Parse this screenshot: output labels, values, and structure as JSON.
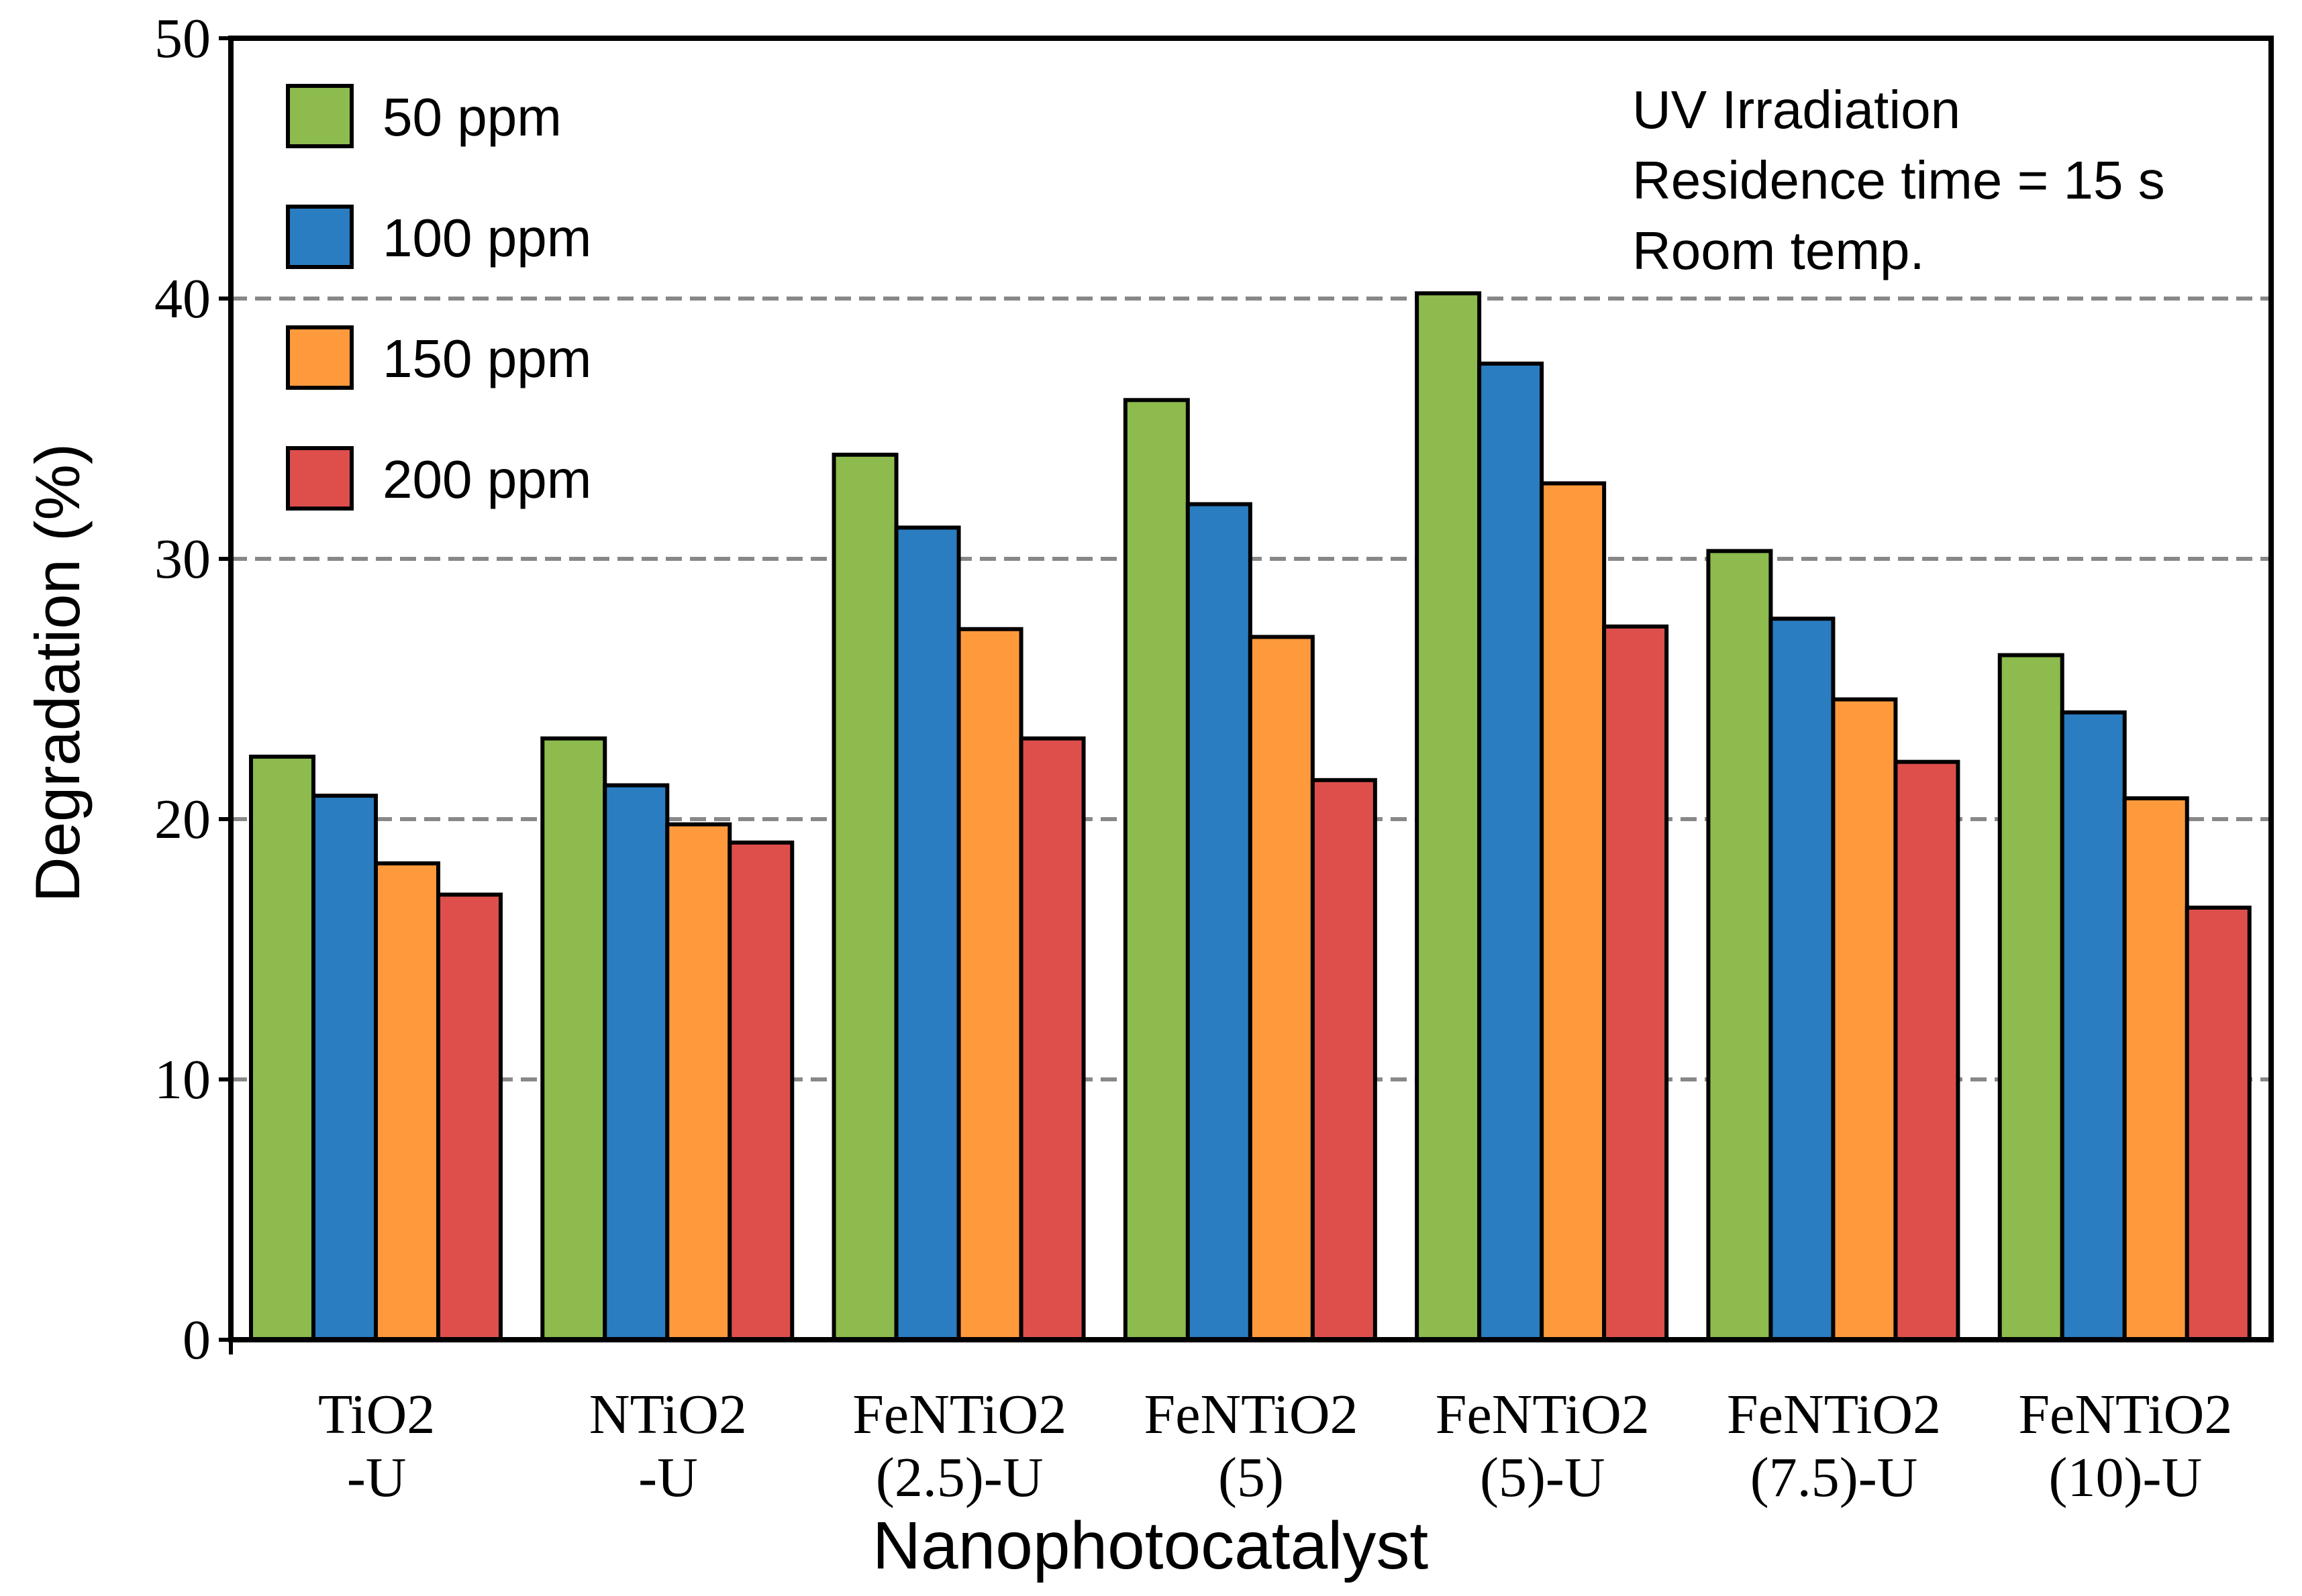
{
  "chart_data": {
    "type": "bar",
    "xlabel": "Nanophotocatalyst",
    "ylabel": "Degradation (%)",
    "ylim": [
      0,
      50
    ],
    "yticks": [
      0,
      10,
      20,
      30,
      40,
      50
    ],
    "grid": "dashed horizontal",
    "legend_position": "top-left",
    "annotation": [
      "UV Irradiation",
      "Residence time = 15 s",
      "Room temp."
    ],
    "categories": [
      [
        "TiO2",
        "-U"
      ],
      [
        "NTiO2",
        "-U"
      ],
      [
        "FeNTiO2",
        "(2.5)-U"
      ],
      [
        "FeNTiO2",
        "(5)"
      ],
      [
        "FeNTiO2",
        "(5)-U"
      ],
      [
        "FeNTiO2",
        "(7.5)-U"
      ],
      [
        "FeNTiO2",
        "(10)-U"
      ]
    ],
    "series": [
      {
        "name": "50 ppm",
        "color": "#8DBB4E",
        "values": [
          22.4,
          23.1,
          34.0,
          36.1,
          40.2,
          30.3,
          26.3
        ]
      },
      {
        "name": "100 ppm",
        "color": "#2A7DC0",
        "values": [
          20.9,
          21.3,
          31.2,
          32.1,
          37.5,
          27.7,
          24.1
        ]
      },
      {
        "name": "150 ppm",
        "color": "#FF9A3C",
        "values": [
          18.3,
          19.8,
          27.3,
          27.0,
          32.9,
          24.6,
          20.8
        ]
      },
      {
        "name": "200 ppm",
        "color": "#DE4F4C",
        "values": [
          17.1,
          19.1,
          23.1,
          21.5,
          27.4,
          22.2,
          16.6
        ]
      }
    ]
  }
}
